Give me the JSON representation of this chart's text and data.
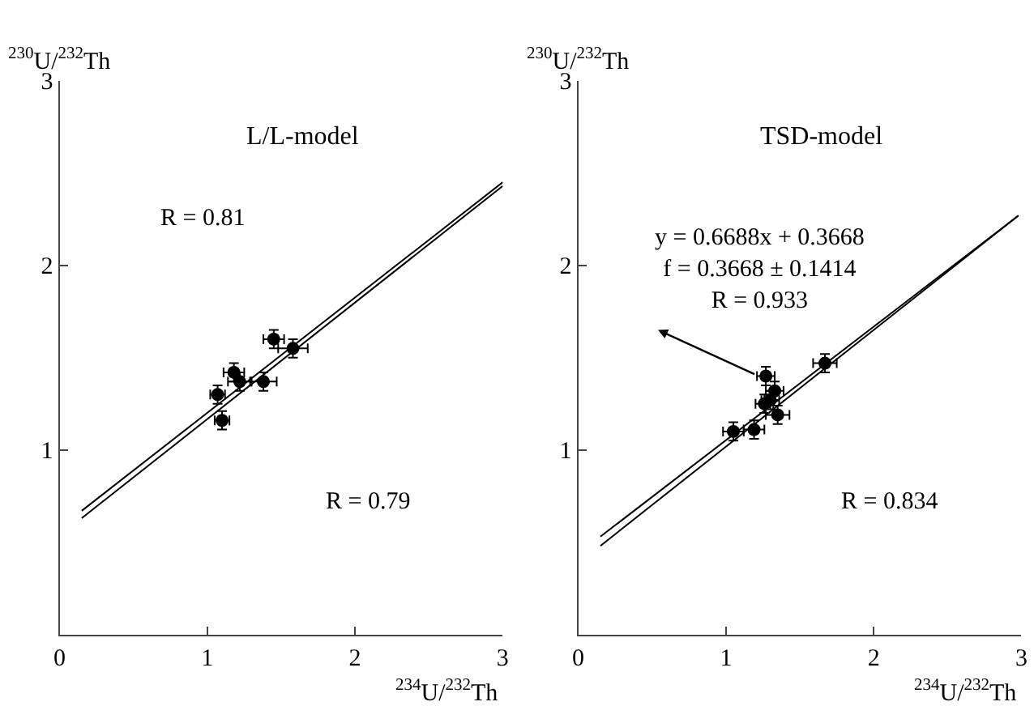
{
  "chart_data": [
    {
      "type": "scatter",
      "title": "L/L-model",
      "xlabel": "$^{234}$U/$^{232}$Th",
      "ylabel": "$^{230}$U/$^{232}$Th",
      "xlim": [
        0,
        3
      ],
      "ylim": [
        0,
        3
      ],
      "xticks": [
        0,
        1,
        2,
        3
      ],
      "yticks": [
        {
          "value": 0,
          "label": null
        },
        1,
        2,
        3
      ],
      "annotations": [
        "R = 0.81",
        "R = 0.79"
      ],
      "series": [
        {
          "color": "#000000",
          "x": [
            1.07,
            1.1,
            1.18,
            1.22,
            1.38,
            1.45,
            1.58
          ],
          "values": [
            1.3,
            1.16,
            1.42,
            1.37,
            1.37,
            1.6,
            1.55
          ],
          "errors": [
            0.05,
            0.05,
            0.05,
            0.05,
            0.05,
            0.05,
            0.05
          ],
          "xerrors": [
            0.05,
            0.05,
            0.07,
            0.08,
            0.09,
            0.07,
            0.1
          ]
        },
        {
          "type": "line",
          "color": "#000000",
          "x": [
            0.15,
            3.0
          ],
          "values": [
            0.67,
            2.45
          ]
        },
        {
          "type": "line",
          "color": "#000000",
          "x": [
            0.15,
            3.0
          ],
          "values": [
            0.63,
            2.43
          ]
        }
      ]
    },
    {
      "type": "scatter",
      "title": "TSD-model",
      "xlabel": "$^{234}$U/$^{232}$Th",
      "ylabel": "$^{230}$U/$^{232}$Th",
      "xlim": [
        0,
        3
      ],
      "ylim": [
        0,
        3
      ],
      "xticks": [
        0,
        1,
        2,
        3
      ],
      "yticks": [
        {
          "value": 0,
          "label": null
        },
        1,
        2,
        3
      ],
      "annotations": [
        "y = 0.6688x + 0.3668\nf = 0.3668 ± 0.1414\nR = 0.933",
        "R = 0.834"
      ],
      "series": [
        {
          "color": "#000000",
          "x": [
            1.05,
            1.19,
            1.27,
            1.33,
            1.26,
            1.35,
            1.3,
            1.67
          ],
          "values": [
            1.1,
            1.11,
            1.4,
            1.32,
            1.25,
            1.19,
            1.27,
            1.47
          ],
          "errors": [
            0.05,
            0.05,
            0.05,
            0.05,
            0.05,
            0.05,
            0.05,
            0.05
          ],
          "xerrors": [
            0.07,
            0.07,
            0.06,
            0.06,
            0.06,
            0.08,
            0.06,
            0.08
          ]
        },
        {
          "type": "line",
          "color": "#000000",
          "x": [
            0.15,
            2.98
          ],
          "values": [
            0.53,
            2.27
          ]
        },
        {
          "type": "line",
          "color": "#000000",
          "x": [
            0.15,
            2.98
          ],
          "values": [
            0.48,
            2.27
          ]
        }
      ]
    }
  ]
}
